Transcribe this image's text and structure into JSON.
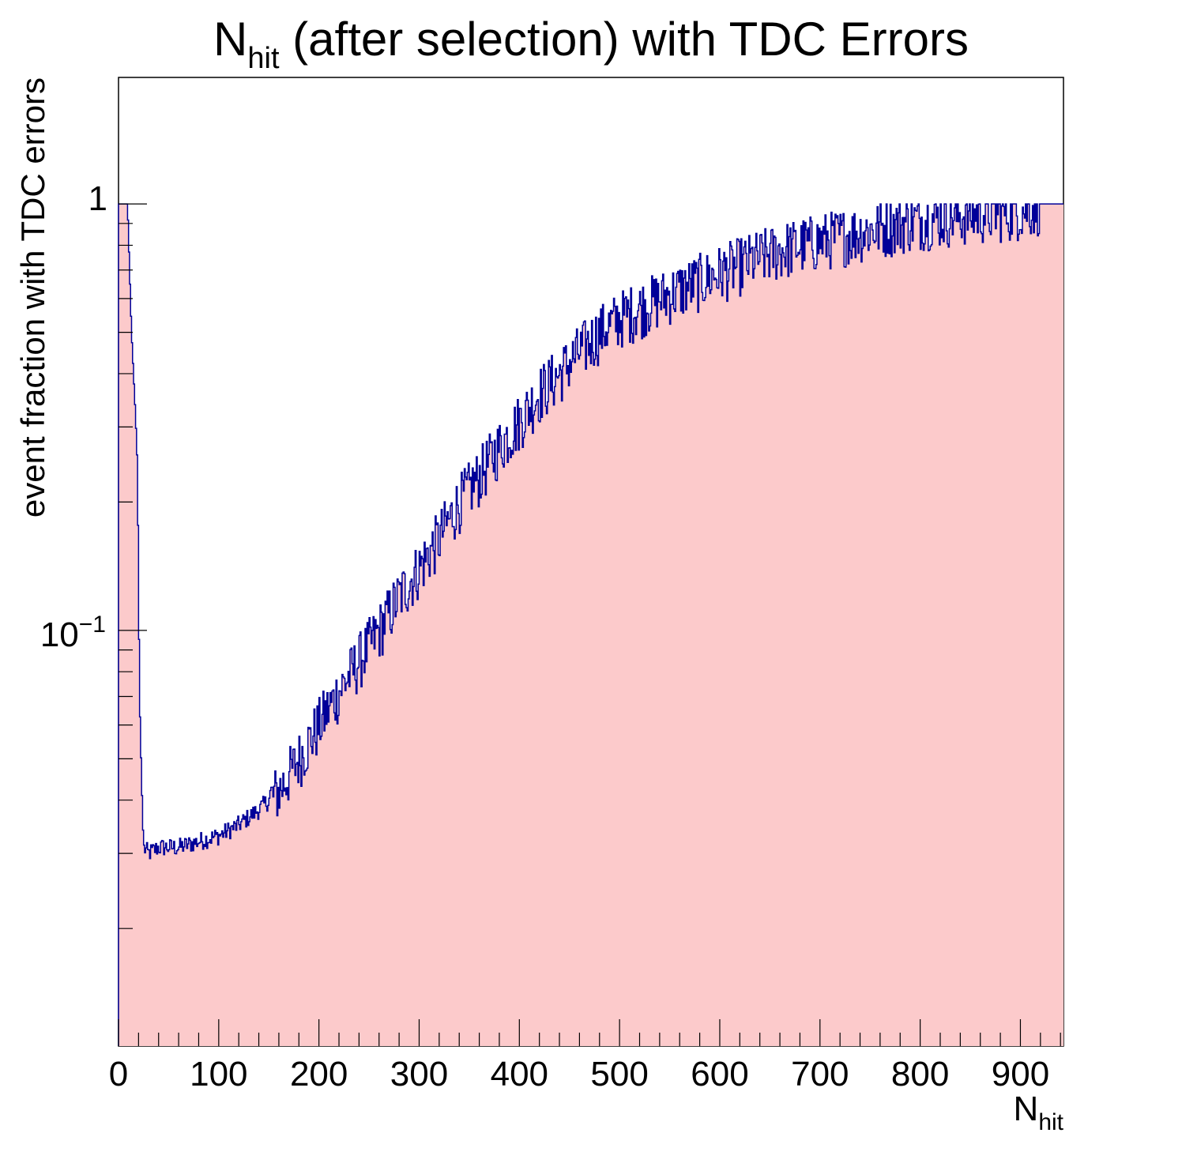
{
  "chart_data": {
    "type": "histogram",
    "title": {
      "main": "N",
      "sub": "hit",
      "rest": " (after selection) with TDC Errors"
    },
    "xlabel": {
      "main": "N",
      "sub": "hit"
    },
    "ylabel": "event fraction with TDC errors",
    "x_ticks": [
      "0",
      "100",
      "200",
      "300",
      "400",
      "500",
      "600",
      "700",
      "800",
      "900"
    ],
    "y_ticks": [
      {
        "base": "1",
        "exp": ""
      },
      {
        "base": "10",
        "exp": "−1"
      }
    ],
    "y_scale": "log",
    "xlim": [
      0,
      943
    ],
    "ylim": [
      0.0106,
      1.98
    ],
    "fill_color": "#fccacb",
    "line_color": "#000099",
    "series": [
      {
        "name": "",
        "x": [
          0,
          5,
          9,
          13,
          17,
          19,
          21,
          23,
          25,
          30,
          40,
          60,
          80,
          100,
          120,
          140,
          160,
          180,
          200,
          220,
          240,
          260,
          280,
          300,
          320,
          340,
          360,
          380,
          400,
          420,
          440,
          460,
          480,
          500,
          520,
          540,
          560,
          580,
          600,
          620,
          640,
          660,
          680,
          700,
          720,
          740,
          760,
          780,
          800,
          820,
          840,
          860,
          880,
          900,
          920,
          925,
          935,
          943
        ],
        "y": [
          1.0,
          1.0,
          1.0,
          0.5,
          0.32,
          0.24,
          0.07,
          0.045,
          0.031,
          0.03,
          0.031,
          0.031,
          0.032,
          0.033,
          0.035,
          0.038,
          0.042,
          0.05,
          0.06,
          0.072,
          0.085,
          0.1,
          0.12,
          0.14,
          0.165,
          0.2,
          0.23,
          0.27,
          0.31,
          0.36,
          0.4,
          0.45,
          0.5,
          0.54,
          0.57,
          0.6,
          0.63,
          0.66,
          0.69,
          0.72,
          0.75,
          0.78,
          0.8,
          0.82,
          0.84,
          0.86,
          0.88,
          0.9,
          0.92,
          0.93,
          0.94,
          0.95,
          0.96,
          0.97,
          1.0,
          1.0,
          1.0,
          1.0
        ]
      }
    ]
  }
}
